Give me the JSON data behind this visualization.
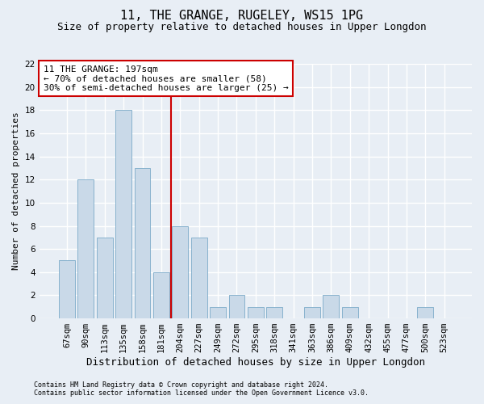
{
  "title": "11, THE GRANGE, RUGELEY, WS15 1PG",
  "subtitle": "Size of property relative to detached houses in Upper Longdon",
  "xlabel": "Distribution of detached houses by size in Upper Longdon",
  "ylabel": "Number of detached properties",
  "footnote1": "Contains HM Land Registry data © Crown copyright and database right 2024.",
  "footnote2": "Contains public sector information licensed under the Open Government Licence v3.0.",
  "categories": [
    "67sqm",
    "90sqm",
    "113sqm",
    "135sqm",
    "158sqm",
    "181sqm",
    "204sqm",
    "227sqm",
    "249sqm",
    "272sqm",
    "295sqm",
    "318sqm",
    "341sqm",
    "363sqm",
    "386sqm",
    "409sqm",
    "432sqm",
    "455sqm",
    "477sqm",
    "500sqm",
    "523sqm"
  ],
  "values": [
    5,
    12,
    7,
    18,
    13,
    4,
    8,
    7,
    1,
    2,
    1,
    1,
    0,
    1,
    2,
    1,
    0,
    0,
    0,
    1,
    0
  ],
  "bar_color": "#c9d9e8",
  "bar_edge_color": "#7baac8",
  "background_color": "#e8eef5",
  "grid_color": "#ffffff",
  "vline_x": 5.5,
  "vline_color": "#cc0000",
  "annotation_text": "11 THE GRANGE: 197sqm\n← 70% of detached houses are smaller (58)\n30% of semi-detached houses are larger (25) →",
  "annotation_box_color": "#ffffff",
  "annotation_box_edge_color": "#cc0000",
  "ylim": [
    0,
    22
  ],
  "yticks": [
    0,
    2,
    4,
    6,
    8,
    10,
    12,
    14,
    16,
    18,
    20,
    22
  ],
  "title_fontsize": 11,
  "subtitle_fontsize": 9,
  "xlabel_fontsize": 9,
  "ylabel_fontsize": 8,
  "tick_fontsize": 7.5,
  "annotation_fontsize": 8,
  "footnote_fontsize": 6
}
